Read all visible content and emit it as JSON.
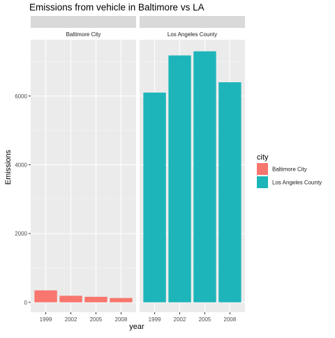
{
  "chart_data": {
    "type": "bar",
    "title": "Emissions from vehicle in Baltimore vs LA",
    "xlabel": "year",
    "ylabel": "Emissions",
    "categories": [
      "1999",
      "2002",
      "2005",
      "2008"
    ],
    "ylim": [
      0,
      7300
    ],
    "yticks": [
      0,
      2000,
      4000,
      6000
    ],
    "grid": true,
    "facets": [
      {
        "strip": "Baltimore City",
        "series": "Baltimore City",
        "values": [
          347,
          190,
          160,
          125
        ]
      },
      {
        "strip": "Los Angeles County",
        "series": "Los Angeles County",
        "values": [
          6100,
          7180,
          7300,
          6400
        ]
      }
    ],
    "legend": {
      "title": "city",
      "placement": "right",
      "entries": [
        {
          "label": "Baltimore City",
          "color": "#F8766D"
        },
        {
          "label": "Los Angeles County",
          "color": "#1DB5B9"
        }
      ]
    },
    "colors": {
      "panel_bg": "#EBEBEB",
      "strip_bg": "#D9D9D9",
      "grid_major": "#FFFFFF",
      "Baltimore City": "#F8766D",
      "Los Angeles County": "#1DB5B9"
    }
  }
}
